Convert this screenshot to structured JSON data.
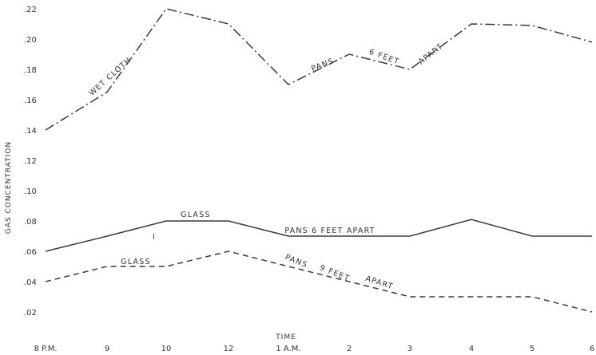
{
  "chart_data": {
    "type": "line",
    "title": "",
    "xlabel": "TIME",
    "ylabel": "GAS CONCENTRATION",
    "ylim": [
      0,
      0.22
    ],
    "grid": false,
    "categories": [
      "8 P.M.",
      "9",
      "10",
      "12",
      "1 A.M.",
      "2",
      "3",
      "4",
      "5",
      "6"
    ],
    "yticks": [
      ".02",
      ".04",
      ".06",
      ".08",
      ".10",
      ".12",
      ".14",
      ".16",
      ".18",
      ".20",
      ".22"
    ],
    "series": [
      {
        "values": [
          0.14,
          0.165,
          0.22,
          0.21,
          0.17,
          0.19,
          0.18,
          0.21,
          0.209,
          0.198
        ],
        "dash": "dash-dot"
      },
      {
        "values": [
          0.06,
          0.07,
          0.08,
          0.08,
          0.07,
          0.07,
          0.07,
          0.081,
          0.07,
          0.07
        ],
        "dash": "solid"
      },
      {
        "values": [
          0.04,
          0.05,
          0.05,
          0.06,
          0.05,
          0.04,
          0.03,
          0.03,
          0.03,
          0.02
        ],
        "dash": "dashed"
      }
    ],
    "annotations": [
      {
        "text": "WET  CLOTH"
      },
      {
        "text": "PANS"
      },
      {
        "text": "6  FEET"
      },
      {
        "text": "APART"
      },
      {
        "text": "GLASS"
      },
      {
        "text": "PANS  6  FEET  APART"
      },
      {
        "text": "GLASS"
      },
      {
        "text": "PANS"
      },
      {
        "text": "9  FEET"
      },
      {
        "text": "APART"
      },
      {
        "text": "I"
      }
    ]
  }
}
